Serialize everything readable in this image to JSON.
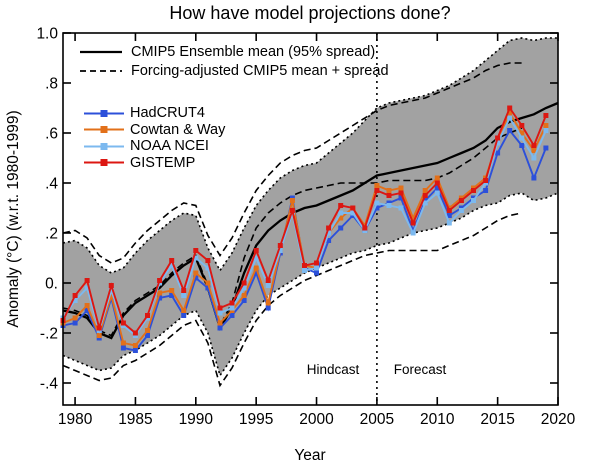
{
  "title": "How have model projections done?",
  "xlabel": "Year",
  "ylabel": "Anomaly (°C) (w.r.t. 1980-1999)",
  "annotations": {
    "hindcast": "Hindcast",
    "forecast": "Forecast"
  },
  "legend": {
    "model": [
      {
        "label": "CMIP5 Ensemble mean (95% spread)",
        "style": "solid",
        "color": "#000000"
      },
      {
        "label": "Forcing-adjusted CMIP5 mean + spread",
        "style": "dashed",
        "color": "#000000"
      }
    ],
    "obs": [
      {
        "label": "HadCRUT4",
        "color": "#2c50da"
      },
      {
        "label": "Cowtan & Way",
        "color": "#e2701a"
      },
      {
        "label": "NOAA NCEI",
        "color": "#7cb9ef"
      },
      {
        "label": "GISTEMP",
        "color": "#dc1712"
      }
    ]
  },
  "chart_data": {
    "type": "line",
    "title": "How have model projections done?",
    "xlabel": "Year",
    "ylabel": "Anomaly (°C) (w.r.t. 1980-1999)",
    "xlim": [
      1979,
      2020
    ],
    "ylim": [
      -0.488,
      1.0
    ],
    "grid": false,
    "legend_position": "upper-left-inside",
    "divider_year": 2005,
    "divider_labels": [
      "Hindcast",
      "Forecast"
    ],
    "band_color": "#a2a2a2",
    "x_ticks": [
      1980,
      1985,
      1990,
      1995,
      2000,
      2005,
      2010,
      2015,
      2020
    ],
    "y_ticks": {
      "values": [
        1.0,
        0.8,
        0.6,
        0.4,
        0.2,
        0.0,
        -0.2,
        -0.4
      ],
      "labels": [
        "1.0",
        ".8",
        ".6",
        ".4",
        ".2",
        "0.",
        "-.2",
        "-.4"
      ]
    },
    "cmip5": {
      "name": "CMIP5 Ensemble mean (95% spread)",
      "years": [
        1979,
        1980,
        1981,
        1982,
        1983,
        1984,
        1985,
        1986,
        1987,
        1988,
        1989,
        1990,
        1991,
        1992,
        1993,
        1994,
        1995,
        1996,
        1997,
        1998,
        1999,
        2000,
        2001,
        2002,
        2003,
        2004,
        2005,
        2006,
        2007,
        2008,
        2009,
        2010,
        2011,
        2012,
        2013,
        2014,
        2015,
        2016,
        2017,
        2018,
        2019,
        2020
      ],
      "mean": [
        -0.11,
        -0.12,
        -0.14,
        -0.2,
        -0.22,
        -0.13,
        -0.08,
        -0.05,
        -0.02,
        0.03,
        0.07,
        0.1,
        -0.02,
        -0.18,
        -0.1,
        0.04,
        0.15,
        0.21,
        0.25,
        0.28,
        0.3,
        0.31,
        0.33,
        0.35,
        0.37,
        0.4,
        0.43,
        0.44,
        0.45,
        0.46,
        0.47,
        0.48,
        0.5,
        0.52,
        0.54,
        0.57,
        0.62,
        0.645,
        0.66,
        0.675,
        0.7,
        0.72
      ],
      "upper95": [
        0.16,
        0.17,
        0.14,
        0.07,
        0.04,
        0.06,
        0.12,
        0.17,
        0.21,
        0.25,
        0.28,
        0.27,
        0.14,
        0.05,
        0.12,
        0.22,
        0.31,
        0.37,
        0.42,
        0.45,
        0.47,
        0.48,
        0.52,
        0.56,
        0.6,
        0.65,
        0.7,
        0.72,
        0.73,
        0.74,
        0.75,
        0.77,
        0.79,
        0.82,
        0.85,
        0.89,
        0.93,
        0.97,
        0.98,
        0.97,
        0.98,
        0.98
      ],
      "lower95": [
        -0.29,
        -0.31,
        -0.33,
        -0.35,
        -0.34,
        -0.29,
        -0.27,
        -0.24,
        -0.21,
        -0.17,
        -0.13,
        -0.11,
        -0.2,
        -0.37,
        -0.3,
        -0.2,
        -0.11,
        -0.05,
        -0.02,
        0.01,
        0.04,
        0.06,
        0.08,
        0.1,
        0.12,
        0.13,
        0.15,
        0.16,
        0.18,
        0.2,
        0.21,
        0.22,
        0.24,
        0.26,
        0.29,
        0.31,
        0.32,
        0.35,
        0.36,
        0.33,
        0.34,
        0.36
      ]
    },
    "forcing_adjusted": {
      "name": "Forcing-adjusted CMIP5 mean + spread",
      "years": [
        1979,
        1980,
        1981,
        1982,
        1983,
        1984,
        1985,
        1986,
        1987,
        1988,
        1989,
        1990,
        1991,
        1992,
        1993,
        1994,
        1995,
        1996,
        1997,
        1998,
        1999,
        2000,
        2001,
        2002,
        2003,
        2004,
        2005,
        2006,
        2007,
        2008,
        2009,
        2010,
        2011,
        2012,
        2013,
        2014,
        2015,
        2016,
        2017
      ],
      "mean": [
        -0.1,
        -0.11,
        -0.13,
        -0.19,
        -0.21,
        -0.12,
        -0.07,
        -0.04,
        -0.01,
        0.04,
        0.08,
        0.11,
        -0.01,
        -0.17,
        -0.08,
        0.1,
        0.22,
        0.28,
        0.32,
        0.35,
        0.37,
        0.38,
        0.39,
        0.4,
        0.4,
        0.4,
        0.4,
        0.41,
        0.41,
        0.41,
        0.41,
        0.42,
        0.44,
        0.47,
        0.5,
        0.54,
        0.58,
        0.6,
        0.62
      ],
      "upper": [
        0.2,
        0.21,
        0.18,
        0.11,
        0.08,
        0.1,
        0.16,
        0.21,
        0.25,
        0.29,
        0.32,
        0.31,
        0.19,
        0.11,
        0.18,
        0.28,
        0.37,
        0.43,
        0.48,
        0.51,
        0.53,
        0.54,
        0.57,
        0.6,
        0.63,
        0.66,
        0.69,
        0.71,
        0.72,
        0.73,
        0.74,
        0.76,
        0.78,
        0.8,
        0.82,
        0.85,
        0.87,
        0.88,
        0.88
      ],
      "lower": [
        -0.33,
        -0.35,
        -0.37,
        -0.39,
        -0.38,
        -0.33,
        -0.31,
        -0.28,
        -0.25,
        -0.21,
        -0.17,
        -0.15,
        -0.24,
        -0.41,
        -0.34,
        -0.24,
        -0.15,
        -0.09,
        -0.05,
        -0.02,
        0.01,
        0.03,
        0.05,
        0.07,
        0.09,
        0.11,
        0.12,
        0.13,
        0.13,
        0.13,
        0.13,
        0.13,
        0.15,
        0.17,
        0.19,
        0.22,
        0.25,
        0.27,
        0.28
      ]
    },
    "obs_years": [
      1979,
      1980,
      1981,
      1982,
      1983,
      1984,
      1985,
      1986,
      1987,
      1988,
      1989,
      1990,
      1991,
      1992,
      1993,
      1994,
      1995,
      1996,
      1997,
      1998,
      1999,
      2000,
      2001,
      2002,
      2003,
      2004,
      2005,
      2006,
      2007,
      2008,
      2009,
      2010,
      2011,
      2012,
      2013,
      2014,
      2015,
      2016,
      2017,
      2018,
      2019
    ],
    "series": [
      {
        "name": "HadCRUT4",
        "color": "#2c50da",
        "values": [
          -0.17,
          -0.16,
          -0.11,
          -0.22,
          -0.06,
          -0.26,
          -0.27,
          -0.21,
          -0.06,
          -0.05,
          -0.13,
          0.02,
          -0.02,
          -0.18,
          -0.13,
          -0.07,
          0.04,
          -0.1,
          0.12,
          0.34,
          0.06,
          0.04,
          0.17,
          0.22,
          0.27,
          0.21,
          0.3,
          0.32,
          0.34,
          0.21,
          0.33,
          0.38,
          0.27,
          0.3,
          0.34,
          0.37,
          0.52,
          0.61,
          0.55,
          0.42,
          0.54
        ]
      },
      {
        "name": "Cowtan & Way",
        "color": "#e2701a",
        "values": [
          -0.16,
          -0.14,
          -0.09,
          -0.21,
          -0.05,
          -0.24,
          -0.25,
          -0.19,
          -0.04,
          -0.03,
          -0.11,
          0.04,
          0.0,
          -0.16,
          -0.11,
          -0.05,
          0.06,
          -0.08,
          0.13,
          0.33,
          0.07,
          0.06,
          0.2,
          0.26,
          0.3,
          0.23,
          0.39,
          0.37,
          0.38,
          0.26,
          0.37,
          0.42,
          0.3,
          0.34,
          0.38,
          0.42,
          0.57,
          0.68,
          0.6,
          0.53,
          0.63
        ]
      },
      {
        "name": "NOAA NCEI",
        "color": "#7cb9ef",
        "values": [
          -0.14,
          -0.07,
          -0.02,
          -0.19,
          -0.03,
          -0.17,
          -0.21,
          -0.14,
          0.0,
          0.07,
          -0.05,
          0.1,
          0.06,
          -0.12,
          -0.1,
          -0.02,
          0.1,
          -0.01,
          0.13,
          0.28,
          0.05,
          0.06,
          0.2,
          0.28,
          0.28,
          0.21,
          0.32,
          0.31,
          0.3,
          0.2,
          0.32,
          0.36,
          0.24,
          0.29,
          0.33,
          0.4,
          0.56,
          0.66,
          0.58,
          0.5,
          0.61
        ]
      },
      {
        "name": "GISTEMP",
        "color": "#dc1712",
        "values": [
          -0.15,
          -0.05,
          0.01,
          -0.18,
          -0.01,
          -0.16,
          -0.2,
          -0.13,
          0.01,
          0.09,
          -0.03,
          0.13,
          0.09,
          -0.1,
          -0.08,
          0.0,
          0.13,
          0.01,
          0.15,
          0.29,
          0.07,
          0.08,
          0.22,
          0.31,
          0.3,
          0.22,
          0.37,
          0.35,
          0.36,
          0.24,
          0.35,
          0.4,
          0.29,
          0.33,
          0.37,
          0.41,
          0.58,
          0.7,
          0.63,
          0.55,
          0.67
        ]
      }
    ]
  }
}
